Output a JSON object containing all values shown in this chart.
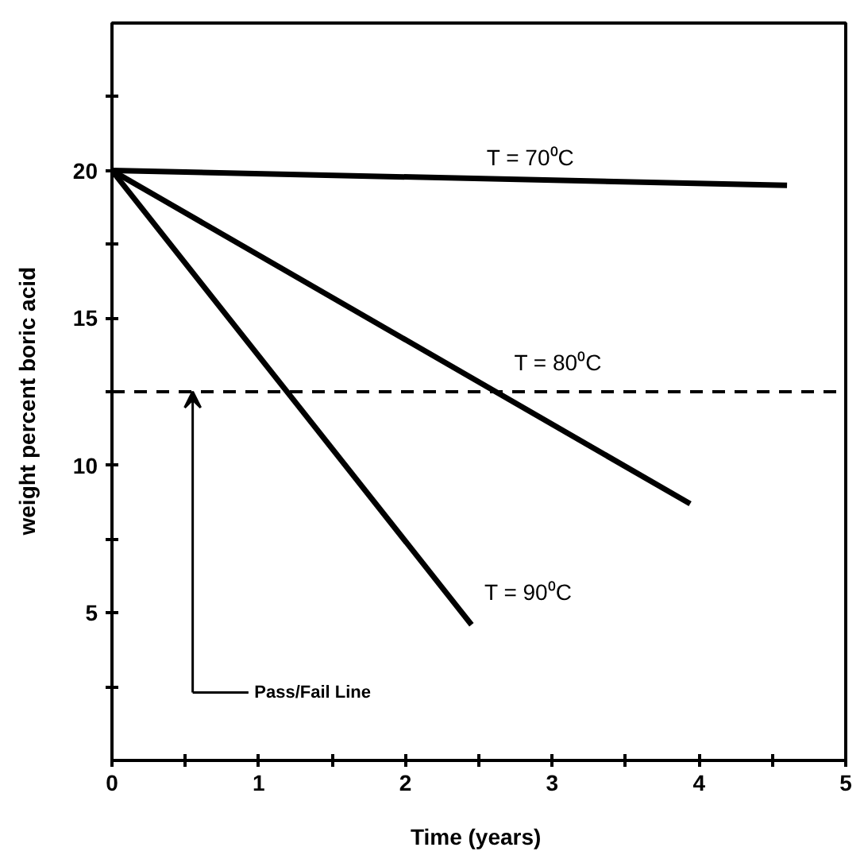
{
  "chart_data": {
    "type": "line",
    "xlabel": "Time  (years)",
    "ylabel": "weight  percent  boric  acid",
    "xlim": [
      0,
      5
    ],
    "ylim": [
      0,
      25
    ],
    "xticks": [
      0,
      {
        "value": 0.5,
        "label": null
      },
      1,
      {
        "value": 1.5,
        "label": null
      },
      2,
      {
        "value": 2.5,
        "label": null
      },
      3,
      {
        "value": 3.5,
        "label": null
      },
      4,
      {
        "value": 4.5,
        "label": null
      },
      5
    ],
    "yticks": [
      {
        "value": 2.5,
        "label": null
      },
      5,
      {
        "value": 7.5,
        "label": null
      },
      10,
      {
        "value": 12.5,
        "label": null
      },
      15,
      {
        "value": 17.5,
        "label": null
      },
      20,
      {
        "value": 22.5,
        "label": null
      }
    ],
    "series": [
      {
        "color": "#000000",
        "x": [
          0,
          4.6
        ],
        "values": [
          20,
          19.5
        ]
      },
      {
        "color": "#000000",
        "x": [
          0,
          3.94
        ],
        "values": [
          20,
          8.7
        ]
      },
      {
        "color": "#000000",
        "x": [
          0,
          2.45
        ],
        "values": [
          20,
          4.6
        ]
      }
    ],
    "ref_lines": [
      {
        "axis": "y",
        "value": 12.5,
        "label": null,
        "color": "#000000",
        "line_style": "dashed"
      }
    ],
    "annotations": [
      "T = 70⁰C",
      "T = 80⁰C",
      "T = 90⁰C",
      "Pass/Fail  Line"
    ],
    "grid": false,
    "marker": "none",
    "line_style": "solid"
  }
}
